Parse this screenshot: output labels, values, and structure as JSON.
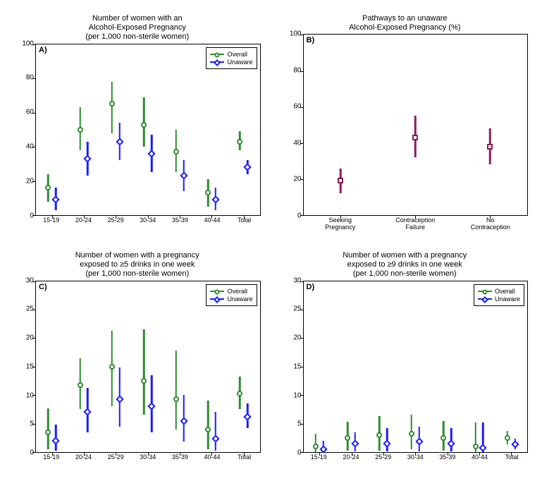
{
  "colors": {
    "overall": "#2e8b2e",
    "unaware": "#1a1aff",
    "pathway": "#8b1a5a",
    "axis": "#000000",
    "bg": "#ffffff"
  },
  "font": {
    "title_size": 11,
    "tick_size": 10,
    "legend_size": 9
  },
  "panels": {
    "A": {
      "letter": "A)",
      "title": "Number of women with an\nAlcohol-Exposed Pregnancy\n(per 1,000 non-sterile women)",
      "ylim": [
        0,
        100
      ],
      "ytick_step": 20,
      "xcats": [
        "15-19",
        "20-24",
        "25-29",
        "30-34",
        "35-39",
        "40-44",
        "Total"
      ],
      "legend": [
        "Overall",
        "Unaware"
      ],
      "series": {
        "overall": {
          "color_key": "overall",
          "marker": "circle",
          "offset": -0.12,
          "points": [
            {
              "y": 16,
              "lo": 8,
              "hi": 24
            },
            {
              "y": 50,
              "lo": 38,
              "hi": 63
            },
            {
              "y": 65,
              "lo": 48,
              "hi": 78
            },
            {
              "y": 53,
              "lo": 40,
              "hi": 69
            },
            {
              "y": 37,
              "lo": 25,
              "hi": 50
            },
            {
              "y": 13,
              "lo": 5,
              "hi": 21
            },
            {
              "y": 43,
              "lo": 38,
              "hi": 49
            }
          ]
        },
        "unaware": {
          "color_key": "unaware",
          "marker": "diamond",
          "offset": 0.12,
          "points": [
            {
              "y": 9,
              "lo": 3,
              "hi": 16
            },
            {
              "y": 33,
              "lo": 23,
              "hi": 43
            },
            {
              "y": 43,
              "lo": 32,
              "hi": 54
            },
            {
              "y": 36,
              "lo": 25,
              "hi": 47
            },
            {
              "y": 23,
              "lo": 14,
              "hi": 32
            },
            {
              "y": 9,
              "lo": 3,
              "hi": 16
            },
            {
              "y": 28,
              "lo": 24,
              "hi": 32
            }
          ]
        }
      }
    },
    "B": {
      "letter": "B)",
      "title": "Pathways to an unaware\nAlcohol-Exposed Pregnancy (%)",
      "ylim": [
        0,
        100
      ],
      "ytick_step": 20,
      "xcats": [
        "Seeking\nPregnancy",
        "Contraception\nFailure",
        "No\nContraception"
      ],
      "series": {
        "pathway": {
          "color_key": "pathway",
          "marker": "square",
          "offset": 0,
          "points": [
            {
              "y": 19,
              "lo": 12,
              "hi": 26
            },
            {
              "y": 43,
              "lo": 32,
              "hi": 55
            },
            {
              "y": 38,
              "lo": 28,
              "hi": 48
            }
          ]
        }
      }
    },
    "C": {
      "letter": "C)",
      "title": "Number of women with a pregnancy\nexposed to ≥5 drinks in one week\n(per 1,000 non-sterile women)",
      "ylim": [
        0,
        30
      ],
      "ytick_step": 5,
      "xcats": [
        "15-19",
        "20-24",
        "25-29",
        "30-34",
        "35-39",
        "40-44",
        "Total"
      ],
      "legend": [
        "Overall",
        "Unaware"
      ],
      "series": {
        "overall": {
          "color_key": "overall",
          "marker": "circle",
          "offset": -0.12,
          "points": [
            {
              "y": 3.5,
              "lo": 0.5,
              "hi": 7.7
            },
            {
              "y": 11.8,
              "lo": 7.5,
              "hi": 16.5
            },
            {
              "y": 15.0,
              "lo": 8.0,
              "hi": 21.3
            },
            {
              "y": 12.5,
              "lo": 6.5,
              "hi": 21.5
            },
            {
              "y": 9.3,
              "lo": 4.0,
              "hi": 17.8
            },
            {
              "y": 4.0,
              "lo": 0.5,
              "hi": 9.0
            },
            {
              "y": 10.3,
              "lo": 7.5,
              "hi": 13.3
            }
          ]
        },
        "unaware": {
          "color_key": "unaware",
          "marker": "diamond",
          "offset": 0.12,
          "points": [
            {
              "y": 2.0,
              "lo": 0.2,
              "hi": 4.8
            },
            {
              "y": 7.0,
              "lo": 3.5,
              "hi": 11.2
            },
            {
              "y": 9.3,
              "lo": 4.5,
              "hi": 14.8
            },
            {
              "y": 8.0,
              "lo": 3.5,
              "hi": 13.5
            },
            {
              "y": 5.5,
              "lo": 1.8,
              "hi": 10.0
            },
            {
              "y": 2.3,
              "lo": 0.2,
              "hi": 7.0
            },
            {
              "y": 6.2,
              "lo": 4.2,
              "hi": 8.5
            }
          ]
        }
      }
    },
    "D": {
      "letter": "D)",
      "title": "Number of women with a pregnancy\nexposed to ≥9 drinks in one week\n(per 1,000 non-sterile women)",
      "ylim": [
        0,
        30
      ],
      "ytick_step": 5,
      "xcats": [
        "15-19",
        "20-24",
        "25-29",
        "30-34",
        "35-39",
        "40-44",
        "Total"
      ],
      "legend": [
        "Overall",
        "Unaware"
      ],
      "series": {
        "overall": {
          "color_key": "overall",
          "marker": "circle",
          "offset": -0.12,
          "points": [
            {
              "y": 1.0,
              "lo": 0.0,
              "hi": 3.2
            },
            {
              "y": 2.5,
              "lo": 0.3,
              "hi": 5.3
            },
            {
              "y": 3.0,
              "lo": 0.3,
              "hi": 6.3
            },
            {
              "y": 3.2,
              "lo": 0.5,
              "hi": 6.5
            },
            {
              "y": 2.5,
              "lo": 0.2,
              "hi": 5.5
            },
            {
              "y": 1.0,
              "lo": 0.0,
              "hi": 5.2
            },
            {
              "y": 2.5,
              "lo": 1.3,
              "hi": 3.7
            }
          ]
        },
        "unaware": {
          "color_key": "unaware",
          "marker": "diamond",
          "offset": 0.12,
          "points": [
            {
              "y": 0.5,
              "lo": 0.0,
              "hi": 2.0
            },
            {
              "y": 1.5,
              "lo": 0.1,
              "hi": 3.5
            },
            {
              "y": 1.5,
              "lo": 0.1,
              "hi": 4.2
            },
            {
              "y": 1.8,
              "lo": 0.1,
              "hi": 4.5
            },
            {
              "y": 1.5,
              "lo": 0.1,
              "hi": 4.2
            },
            {
              "y": 0.8,
              "lo": 0.0,
              "hi": 5.2
            },
            {
              "y": 1.3,
              "lo": 0.5,
              "hi": 2.3
            }
          ]
        }
      }
    }
  }
}
